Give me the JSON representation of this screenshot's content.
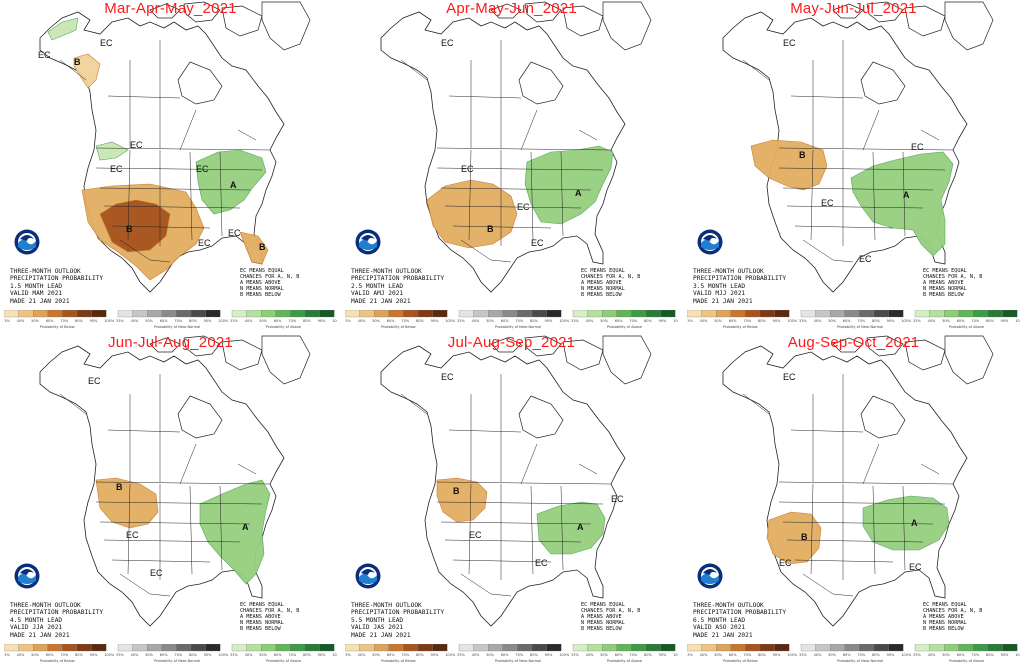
{
  "colors": {
    "title": "#ff1a1a",
    "below_light": "#f2d29a",
    "below_mid": "#e2ad60",
    "below_dark": "#c9772e",
    "below_darker": "#a8541f",
    "above_light": "#c9e6b3",
    "above_mid": "#96cf7f",
    "above_dark": "#4fa35a",
    "map_line": "#222222"
  },
  "legend": {
    "key_lines": [
      "EC MEANS EQUAL",
      "CHANCES FOR A, N, B",
      "A MEANS ABOVE",
      "N MEANS NORMAL",
      "B MEANS BELOW"
    ],
    "below_caption": "Probability of Below",
    "normal_caption": "Probability of Near-Normal",
    "above_caption": "Probability of Above",
    "ticks": [
      "33%",
      "40%",
      "50%",
      "60%",
      "70%",
      "80%",
      "90%",
      "100%"
    ]
  },
  "panels": [
    {
      "title": "Mar-Apr-May_2021",
      "info_lines": [
        "THREE-MONTH OUTLOOK",
        "PRECIPITATION PROBABILITY",
        "1.5 MONTH LEAD",
        "VALID MAM 2021",
        "MADE 21 JAN 2021"
      ],
      "labels": [
        {
          "t": "EC",
          "k": "ec"
        },
        {
          "t": "EC",
          "k": "ec"
        },
        {
          "t": "B",
          "k": "cat"
        },
        {
          "t": "EC",
          "k": "ec"
        },
        {
          "t": "EC",
          "k": "ec"
        },
        {
          "t": "EC",
          "k": "ec"
        },
        {
          "t": "B",
          "k": "cat"
        },
        {
          "t": "A",
          "k": "cat"
        },
        {
          "t": "EC",
          "k": "ec"
        },
        {
          "t": "EC",
          "k": "ec"
        },
        {
          "t": "B",
          "k": "cat"
        }
      ],
      "regions": [
        {
          "name": "alaska-above",
          "cat": "above",
          "level": 1
        },
        {
          "name": "alaska-south-below",
          "cat": "below",
          "level": 1
        },
        {
          "name": "northwest-above",
          "cat": "above",
          "level": 1
        },
        {
          "name": "southwest-below",
          "cat": "below",
          "level": 2
        },
        {
          "name": "southwest-core-below",
          "cat": "below",
          "level": 4
        },
        {
          "name": "great-lakes-above",
          "cat": "above",
          "level": 2
        },
        {
          "name": "florida-below",
          "cat": "below",
          "level": 2
        }
      ]
    },
    {
      "title": "Apr-May-Jun_2021",
      "info_lines": [
        "THREE-MONTH OUTLOOK",
        "PRECIPITATION PROBABILITY",
        "2.5 MONTH LEAD",
        "VALID AMJ 2021",
        "MADE 21 JAN 2021"
      ],
      "labels": [
        {
          "t": "EC",
          "k": "ec"
        },
        {
          "t": "EC",
          "k": "ec"
        },
        {
          "t": "B",
          "k": "cat"
        },
        {
          "t": "A",
          "k": "cat"
        },
        {
          "t": "EC",
          "k": "ec"
        },
        {
          "t": "EC",
          "k": "ec"
        }
      ],
      "regions": [
        {
          "name": "southwest-below",
          "cat": "below",
          "level": 2
        },
        {
          "name": "ohio-valley-above",
          "cat": "above",
          "level": 2
        }
      ]
    },
    {
      "title": "May-Jun-Jul_2021",
      "info_lines": [
        "THREE-MONTH OUTLOOK",
        "PRECIPITATION PROBABILITY",
        "3.5 MONTH LEAD",
        "VALID MJJ 2021",
        "MADE 21 JAN 2021"
      ],
      "labels": [
        {
          "t": "EC",
          "k": "ec"
        },
        {
          "t": "B",
          "k": "cat"
        },
        {
          "t": "EC",
          "k": "ec"
        },
        {
          "t": "A",
          "k": "cat"
        },
        {
          "t": "EC",
          "k": "ec"
        },
        {
          "t": "EC",
          "k": "ec"
        }
      ],
      "regions": [
        {
          "name": "northwest-below",
          "cat": "below",
          "level": 2
        },
        {
          "name": "east-above",
          "cat": "above",
          "level": 2
        }
      ]
    },
    {
      "title": "Jun-Jul-Aug_2021",
      "info_lines": [
        "THREE-MONTH OUTLOOK",
        "PRECIPITATION PROBABILITY",
        "4.5 MONTH LEAD",
        "VALID JJA 2021",
        "MADE 21 JAN 2021"
      ],
      "labels": [
        {
          "t": "EC",
          "k": "ec"
        },
        {
          "t": "B",
          "k": "cat"
        },
        {
          "t": "EC",
          "k": "ec"
        },
        {
          "t": "A",
          "k": "cat"
        },
        {
          "t": "EC",
          "k": "ec"
        }
      ],
      "regions": [
        {
          "name": "northwest-below",
          "cat": "below",
          "level": 2
        },
        {
          "name": "east-above",
          "cat": "above",
          "level": 2
        }
      ]
    },
    {
      "title": "Jul-Aug-Sep_2021",
      "info_lines": [
        "THREE-MONTH OUTLOOK",
        "PRECIPITATION PROBABILITY",
        "5.5 MONTH LEAD",
        "VALID JAS 2021",
        "MADE 21 JAN 2021"
      ],
      "labels": [
        {
          "t": "EC",
          "k": "ec"
        },
        {
          "t": "B",
          "k": "cat"
        },
        {
          "t": "EC",
          "k": "ec"
        },
        {
          "t": "A",
          "k": "cat"
        },
        {
          "t": "EC",
          "k": "ec"
        },
        {
          "t": "EC",
          "k": "ec"
        }
      ],
      "regions": [
        {
          "name": "northwest-below",
          "cat": "below",
          "level": 2
        },
        {
          "name": "ohio-valley-above",
          "cat": "above",
          "level": 2
        }
      ]
    },
    {
      "title": "Aug-Sep-Oct_2021",
      "info_lines": [
        "THREE-MONTH OUTLOOK",
        "PRECIPITATION PROBABILITY",
        "6.5 MONTH LEAD",
        "VALID ASO 2021",
        "MADE 21 JAN 2021"
      ],
      "labels": [
        {
          "t": "EC",
          "k": "ec"
        },
        {
          "t": "B",
          "k": "cat"
        },
        {
          "t": "EC",
          "k": "ec"
        },
        {
          "t": "A",
          "k": "cat"
        },
        {
          "t": "EC",
          "k": "ec"
        }
      ],
      "regions": [
        {
          "name": "four-corners-below",
          "cat": "below",
          "level": 2
        },
        {
          "name": "ohio-valley-above",
          "cat": "above",
          "level": 2
        }
      ]
    }
  ]
}
